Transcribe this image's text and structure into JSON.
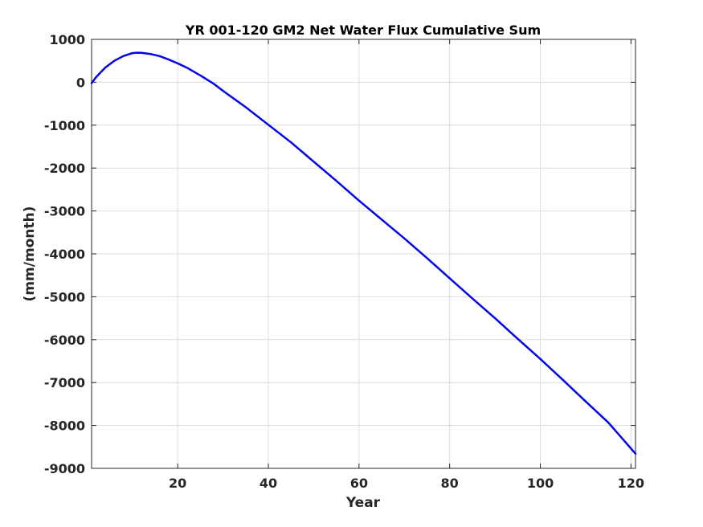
{
  "chart_data": {
    "type": "line",
    "title": "YR 001-120 GM2 Net Water Flux Cumulative Sum",
    "xlabel": "Year",
    "ylabel": "(mm/month)",
    "xlim": [
      1,
      121
    ],
    "ylim": [
      -9000,
      1000
    ],
    "xticks": [
      20,
      40,
      60,
      80,
      100,
      120
    ],
    "yticks": [
      1000,
      0,
      -1000,
      -2000,
      -3000,
      -4000,
      -5000,
      -6000,
      -7000,
      -8000,
      -9000
    ],
    "grid": true,
    "legend": "none",
    "series": [
      {
        "color": "#0000ee",
        "x": [
          1,
          2,
          4,
          6,
          8,
          10,
          11,
          12,
          14,
          16,
          18,
          20,
          22,
          25,
          28,
          30,
          35,
          40,
          45,
          50,
          55,
          60,
          65,
          70,
          75,
          80,
          85,
          90,
          95,
          100,
          105,
          110,
          115,
          121
        ],
        "y": [
          -20,
          120,
          340,
          500,
          610,
          680,
          690,
          685,
          660,
          610,
          530,
          440,
          340,
          160,
          -40,
          -200,
          -580,
          -990,
          -1400,
          -1850,
          -2300,
          -2760,
          -3200,
          -3640,
          -4100,
          -4570,
          -5040,
          -5500,
          -5980,
          -6450,
          -6940,
          -7440,
          -7930,
          -8660
        ]
      }
    ]
  }
}
